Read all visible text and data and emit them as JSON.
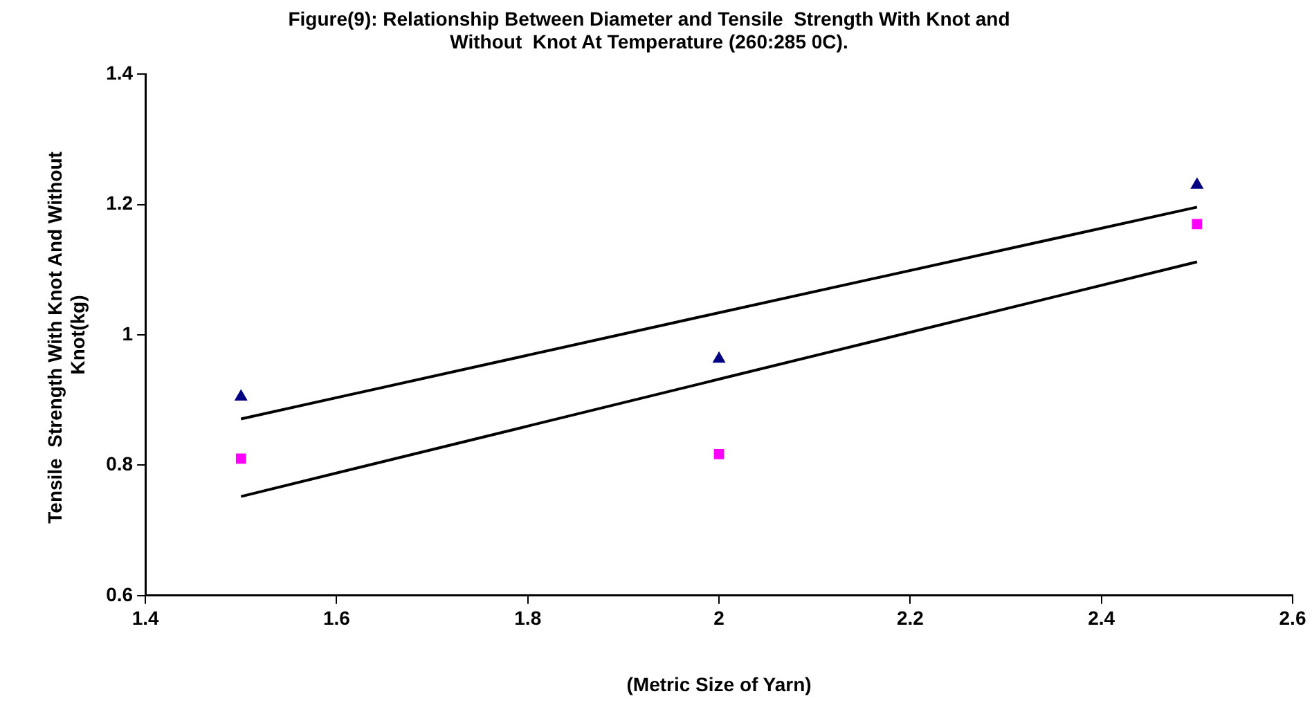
{
  "chart_data": {
    "type": "scatter",
    "title": "Figure(9): Relationship Between Diameter and Tensile  Strength With Knot and Without  Knot At Temperature (260:285 0C).",
    "xlabel": "(Metric Size of Yarn)",
    "ylabel": "Tensile  Strength With Knot And Without  Knot(kg)",
    "x": [
      1.5,
      2,
      2.5
    ],
    "series": [
      {
        "type": "scatter",
        "color": "#000080",
        "marker": "triangle",
        "values": [
          0.905,
          0.963,
          1.23
        ]
      },
      {
        "type": "scatter",
        "color": "#ff00ff",
        "marker": "square",
        "values": [
          0.81,
          0.817,
          1.17
        ]
      },
      {
        "type": "line",
        "color": "#000000",
        "marker": "none",
        "values": [
          0.871,
          1.034,
          1.196
        ]
      },
      {
        "type": "line",
        "color": "#000000",
        "marker": "none",
        "values": [
          0.752,
          0.932,
          1.112
        ]
      }
    ],
    "xlim": [
      1.4,
      2.6
    ],
    "xticks": [
      1.4,
      1.6,
      1.8,
      2,
      2.2,
      2.4,
      2.6
    ],
    "ylim": [
      0.6,
      1.4
    ],
    "yticks": [
      0.6,
      0.8,
      1,
      1.2,
      1.4
    ],
    "grid": false,
    "legend": false
  }
}
